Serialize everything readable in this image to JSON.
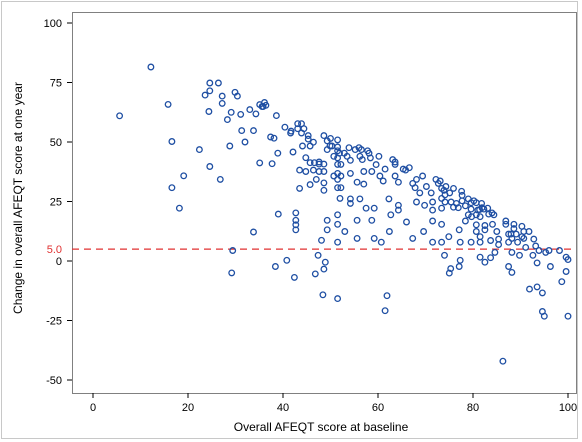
{
  "chart_data": {
    "type": "scatter",
    "xlabel": "Overall AFEQT score at baseline",
    "ylabel": "Change in overall AFEQT score at one year",
    "xlim": [
      0,
      100
    ],
    "ylim": [
      -55,
      102
    ],
    "x_ticks": [
      0,
      20,
      40,
      60,
      80,
      100
    ],
    "y_ticks": [
      -50,
      -25,
      0,
      25,
      50,
      75,
      100
    ],
    "reference_line": {
      "value": 5.0,
      "label": "5.0",
      "color": "#e03030",
      "style": "dashed"
    },
    "marker": {
      "shape": "hollow-circle",
      "color": "#1f4fa3"
    },
    "grid": false,
    "points": [
      [
        5.6,
        61
      ],
      [
        12.2,
        81.5
      ],
      [
        15.8,
        65.8
      ],
      [
        16.6,
        50.2
      ],
      [
        16.6,
        30.8
      ],
      [
        18.2,
        22.2
      ],
      [
        19.1,
        35.8
      ],
      [
        22.4,
        46.8
      ],
      [
        23.6,
        69.7
      ],
      [
        24.6,
        74.8
      ],
      [
        24.6,
        71.5
      ],
      [
        24.4,
        62.8
      ],
      [
        24.6,
        39.7
      ],
      [
        26.4,
        74.8
      ],
      [
        27.2,
        66.2
      ],
      [
        27.2,
        69.3
      ],
      [
        26.8,
        34.3
      ],
      [
        28.3,
        59.4
      ],
      [
        29.1,
        62.5
      ],
      [
        28.8,
        48.3
      ],
      [
        29.2,
        -5
      ],
      [
        29.4,
        4.4
      ],
      [
        29.9,
        70.9
      ],
      [
        30.4,
        69.3
      ],
      [
        31.1,
        61.6
      ],
      [
        31.3,
        54.8
      ],
      [
        32,
        50
      ],
      [
        33,
        63.6
      ],
      [
        33.8,
        54.8
      ],
      [
        33.8,
        12.2
      ],
      [
        34.3,
        61.8
      ],
      [
        35.1,
        65.7
      ],
      [
        35.1,
        41.2
      ],
      [
        35.6,
        64.9
      ],
      [
        35.8,
        64.9
      ],
      [
        36.1,
        66.6
      ],
      [
        36.4,
        65.4
      ],
      [
        37.4,
        52.1
      ],
      [
        37.7,
        40.9
      ],
      [
        38.1,
        51.6
      ],
      [
        38.4,
        -2.3
      ],
      [
        38.6,
        61.1
      ],
      [
        38.9,
        45.3
      ],
      [
        39,
        19.7
      ],
      [
        40.4,
        56.2
      ],
      [
        40.8,
        0.3
      ],
      [
        41.6,
        53.8
      ],
      [
        41.7,
        54.6
      ],
      [
        42.1,
        45.8
      ],
      [
        42.4,
        -6.9
      ],
      [
        42.7,
        20.2
      ],
      [
        42.7,
        17.1
      ],
      [
        42.7,
        13.1
      ],
      [
        42.7,
        15.2
      ],
      [
        43.1,
        57.7
      ],
      [
        43.1,
        55.6
      ],
      [
        43.5,
        38.2
      ],
      [
        43.5,
        30.5
      ],
      [
        43.9,
        57.7
      ],
      [
        43.9,
        53.8
      ],
      [
        44.1,
        48.3
      ],
      [
        44.4,
        55.6
      ],
      [
        44.8,
        43.4
      ],
      [
        44.8,
        37.6
      ],
      [
        45.3,
        52.7
      ],
      [
        45.3,
        51.2
      ],
      [
        45.7,
        41.3
      ],
      [
        45.7,
        48.3
      ],
      [
        45.7,
        32.1
      ],
      [
        46.4,
        49.9
      ],
      [
        46.4,
        38.2
      ],
      [
        46.6,
        41.3
      ],
      [
        46.8,
        -5.4
      ],
      [
        47,
        34.3
      ],
      [
        47.4,
        2.4
      ],
      [
        47.6,
        37.6
      ],
      [
        47.6,
        41.6
      ],
      [
        47.6,
        40.7
      ],
      [
        48.1,
        8.7
      ],
      [
        48.4,
        -14.2
      ],
      [
        48.6,
        52.7
      ],
      [
        48.6,
        40.7
      ],
      [
        48.6,
        37.6
      ],
      [
        48.6,
        32.8
      ],
      [
        48.6,
        29.7
      ],
      [
        48.6,
        -3.4
      ],
      [
        48.9,
        -0.5
      ],
      [
        49.3,
        50.5
      ],
      [
        49.3,
        46.8
      ],
      [
        49.3,
        17.1
      ],
      [
        49.3,
        13.1
      ],
      [
        49.9,
        48.4
      ],
      [
        50,
        51.5
      ],
      [
        50.3,
        48.3
      ],
      [
        50.7,
        44
      ],
      [
        50.7,
        35.7
      ],
      [
        51.5,
        50.9
      ],
      [
        51.5,
        47.9
      ],
      [
        51.5,
        46.3
      ],
      [
        51.5,
        43.3
      ],
      [
        51.5,
        40.6
      ],
      [
        51.5,
        36.8
      ],
      [
        51.5,
        34.3
      ],
      [
        51.5,
        30.8
      ],
      [
        51.5,
        19.4
      ],
      [
        51.5,
        15.4
      ],
      [
        51.5,
        7.9
      ],
      [
        51.5,
        -15.8
      ],
      [
        51.9,
        45.3
      ],
      [
        52,
        26.3
      ],
      [
        52.2,
        40.6
      ],
      [
        52.2,
        35.7
      ],
      [
        52.2,
        30.8
      ],
      [
        52.9,
        45.3
      ],
      [
        53,
        12.4
      ],
      [
        53.5,
        44
      ],
      [
        53.9,
        47.6
      ],
      [
        54.2,
        42.3
      ],
      [
        54.2,
        36.8
      ],
      [
        54.2,
        26.1
      ],
      [
        54.2,
        24.2
      ],
      [
        55.2,
        46.8
      ],
      [
        55.6,
        33.1
      ],
      [
        55.6,
        17.1
      ],
      [
        55.6,
        9.5
      ],
      [
        56,
        47.6
      ],
      [
        56.2,
        44
      ],
      [
        56.2,
        26.1
      ],
      [
        56.5,
        46.8
      ],
      [
        56.7,
        42.6
      ],
      [
        57,
        37.6
      ],
      [
        57,
        32.3
      ],
      [
        57.5,
        22.2
      ],
      [
        57.8,
        46.3
      ],
      [
        58.1,
        45.3
      ],
      [
        58.4,
        43.3
      ],
      [
        58.7,
        37.6
      ],
      [
        58.7,
        17.1
      ],
      [
        59.2,
        22.2
      ],
      [
        59.2,
        9.5
      ],
      [
        59.6,
        40.5
      ],
      [
        60.2,
        44
      ],
      [
        60.4,
        35.7
      ],
      [
        60.7,
        7.9
      ],
      [
        61.1,
        33.6
      ],
      [
        61.5,
        38.6
      ],
      [
        61.5,
        -20.9
      ],
      [
        61.9,
        -14.6
      ],
      [
        62.3,
        26.1
      ],
      [
        62.4,
        12.4
      ],
      [
        62.7,
        19.4
      ],
      [
        63.1,
        42.6
      ],
      [
        63.6,
        41.6
      ],
      [
        63.6,
        40.6
      ],
      [
        63.6,
        35.7
      ],
      [
        64.3,
        33.1
      ],
      [
        64.3,
        23.4
      ],
      [
        64.3,
        21.4
      ],
      [
        65.3,
        38.6
      ],
      [
        65.8,
        38.2
      ],
      [
        66,
        16.4
      ],
      [
        66.6,
        39.2
      ],
      [
        67.3,
        32.6
      ],
      [
        67.3,
        9.5
      ],
      [
        67.8,
        30.8
      ],
      [
        68.1,
        34.3
      ],
      [
        68.1,
        24.8
      ],
      [
        68.8,
        28.6
      ],
      [
        69.4,
        35.7
      ],
      [
        69.6,
        12.4
      ],
      [
        69.8,
        23.4
      ],
      [
        70.2,
        31.3
      ],
      [
        71.2,
        28.6
      ],
      [
        71.5,
        24.8
      ],
      [
        71.5,
        21.4
      ],
      [
        71.5,
        7.9
      ],
      [
        71.5,
        16.8
      ],
      [
        72.2,
        34.3
      ],
      [
        72.7,
        32.6
      ],
      [
        73.1,
        33.6
      ],
      [
        73.4,
        30.5
      ],
      [
        73.4,
        26.3
      ],
      [
        73.4,
        22.2
      ],
      [
        73.4,
        15.4
      ],
      [
        73.4,
        7.9
      ],
      [
        73.9,
        29.7
      ],
      [
        74,
        2.4
      ],
      [
        74.1,
        27.8
      ],
      [
        74.1,
        24.8
      ],
      [
        74.3,
        31.3
      ],
      [
        74.9,
        10.2
      ],
      [
        75.1,
        28.6
      ],
      [
        75,
        -5.1
      ],
      [
        75.3,
        -3.2
      ],
      [
        75.4,
        24.8
      ],
      [
        75.9,
        30.5
      ],
      [
        75.9,
        22.6
      ],
      [
        76.5,
        24.2
      ],
      [
        76.9,
        22.4
      ],
      [
        77.1,
        13.1
      ],
      [
        77.1,
        -2.3
      ],
      [
        77.3,
        7.9
      ],
      [
        77.3,
        0.3
      ],
      [
        77.6,
        29.3
      ],
      [
        77.7,
        27.6
      ],
      [
        77.7,
        25.3
      ],
      [
        78.4,
        23.2
      ],
      [
        78.4,
        16.8
      ],
      [
        79,
        26.1
      ],
      [
        79,
        19.4
      ],
      [
        79.6,
        24.5
      ],
      [
        79.6,
        21.8
      ],
      [
        79.6,
        7.9
      ],
      [
        79.7,
        18.6
      ],
      [
        80.2,
        25.3
      ],
      [
        80.7,
        24.5
      ],
      [
        80.7,
        19.4
      ],
      [
        80.7,
        15.2
      ],
      [
        80.7,
        12.4
      ],
      [
        81,
        21.4
      ],
      [
        81.4,
        21.6
      ],
      [
        81.5,
        18.6
      ],
      [
        81.5,
        10.2
      ],
      [
        81.5,
        7.9
      ],
      [
        81.5,
        1.6
      ],
      [
        81.8,
        24.2
      ],
      [
        81.9,
        22.4
      ],
      [
        82.3,
        21.8
      ],
      [
        82.5,
        14.9
      ],
      [
        82.5,
        13.1
      ],
      [
        82.5,
        -0.5
      ],
      [
        83.1,
        22.2
      ],
      [
        83.3,
        19.7
      ],
      [
        83.7,
        8.6
      ],
      [
        83.7,
        1.4
      ],
      [
        84,
        20.2
      ],
      [
        84.1,
        15.4
      ],
      [
        84.4,
        19.4
      ],
      [
        84.6,
        3.6
      ],
      [
        85,
        12.4
      ],
      [
        85.4,
        9.2
      ],
      [
        85.4,
        6.9
      ],
      [
        86.3,
        -42.1
      ],
      [
        86.9,
        16.8
      ],
      [
        86.9,
        15.4
      ],
      [
        87.5,
        11.3
      ],
      [
        87.5,
        7.9
      ],
      [
        87.5,
        -2.3
      ],
      [
        88,
        11.3
      ],
      [
        88.2,
        3.6
      ],
      [
        88.2,
        -4.8
      ],
      [
        88.2,
        9.5
      ],
      [
        88.6,
        15.4
      ],
      [
        88.6,
        13.6
      ],
      [
        89.1,
        11.3
      ],
      [
        89.4,
        7.9
      ],
      [
        89.8,
        2.4
      ],
      [
        90.3,
        14.6
      ],
      [
        90.3,
        10.2
      ],
      [
        90.7,
        12.4
      ],
      [
        90.7,
        9.5
      ],
      [
        91.1,
        5.7
      ],
      [
        91.8,
        12.4
      ],
      [
        91.9,
        -11.8
      ],
      [
        92.6,
        2.4
      ],
      [
        92.8,
        9.2
      ],
      [
        93.2,
        6.3
      ],
      [
        93.5,
        -0.8
      ],
      [
        93.5,
        -10.9
      ],
      [
        93.9,
        4.4
      ],
      [
        94.6,
        -21.2
      ],
      [
        94.6,
        -13.4
      ],
      [
        95,
        -23.2
      ],
      [
        95.3,
        3.6
      ],
      [
        96,
        4.4
      ],
      [
        96.3,
        -2.3
      ],
      [
        98.2,
        4.4
      ],
      [
        98.7,
        -8.7
      ],
      [
        99.6,
        1.6
      ],
      [
        99.6,
        -4.4
      ],
      [
        100,
        0.6
      ],
      [
        100,
        -23.2
      ]
    ]
  }
}
